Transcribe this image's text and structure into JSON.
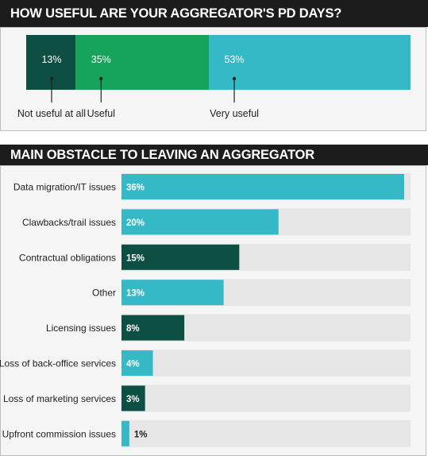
{
  "chart_data": [
    {
      "type": "bar",
      "stacked": true,
      "orientation": "horizontal",
      "title": "HOW USEFUL ARE YOUR AGGREGATOR'S PD DAYS?",
      "categories": [
        "Not useful at all",
        "Useful",
        "Very useful"
      ],
      "values": [
        13,
        35,
        53
      ],
      "value_labels": [
        "13%",
        "35%",
        "53%"
      ],
      "colors": [
        "#0e4f44",
        "#16a35a",
        "#36b9c6"
      ]
    },
    {
      "type": "bar",
      "orientation": "horizontal",
      "title": "MAIN OBSTACLE TO LEAVING AN AGGREGATOR",
      "xlim": [
        0,
        36
      ],
      "categories": [
        "Data migration/IT issues",
        "Clawbacks/trail issues",
        "Contractual obligations",
        "Other",
        "Licensing issues",
        "Loss of back-office services",
        "Loss of marketing services",
        "Upfront commission issues"
      ],
      "values": [
        36,
        20,
        15,
        13,
        8,
        4,
        3,
        1
      ],
      "value_labels": [
        "36%",
        "20%",
        "15%",
        "13%",
        "8%",
        "4%",
        "3%",
        "1%"
      ],
      "colors": [
        "#36b9c6",
        "#36b9c6",
        "#0e4f44",
        "#36b9c6",
        "#0e4f44",
        "#36b9c6",
        "#0e4f44",
        "#36b9c6"
      ],
      "track_color": "#e6e6e6"
    }
  ]
}
